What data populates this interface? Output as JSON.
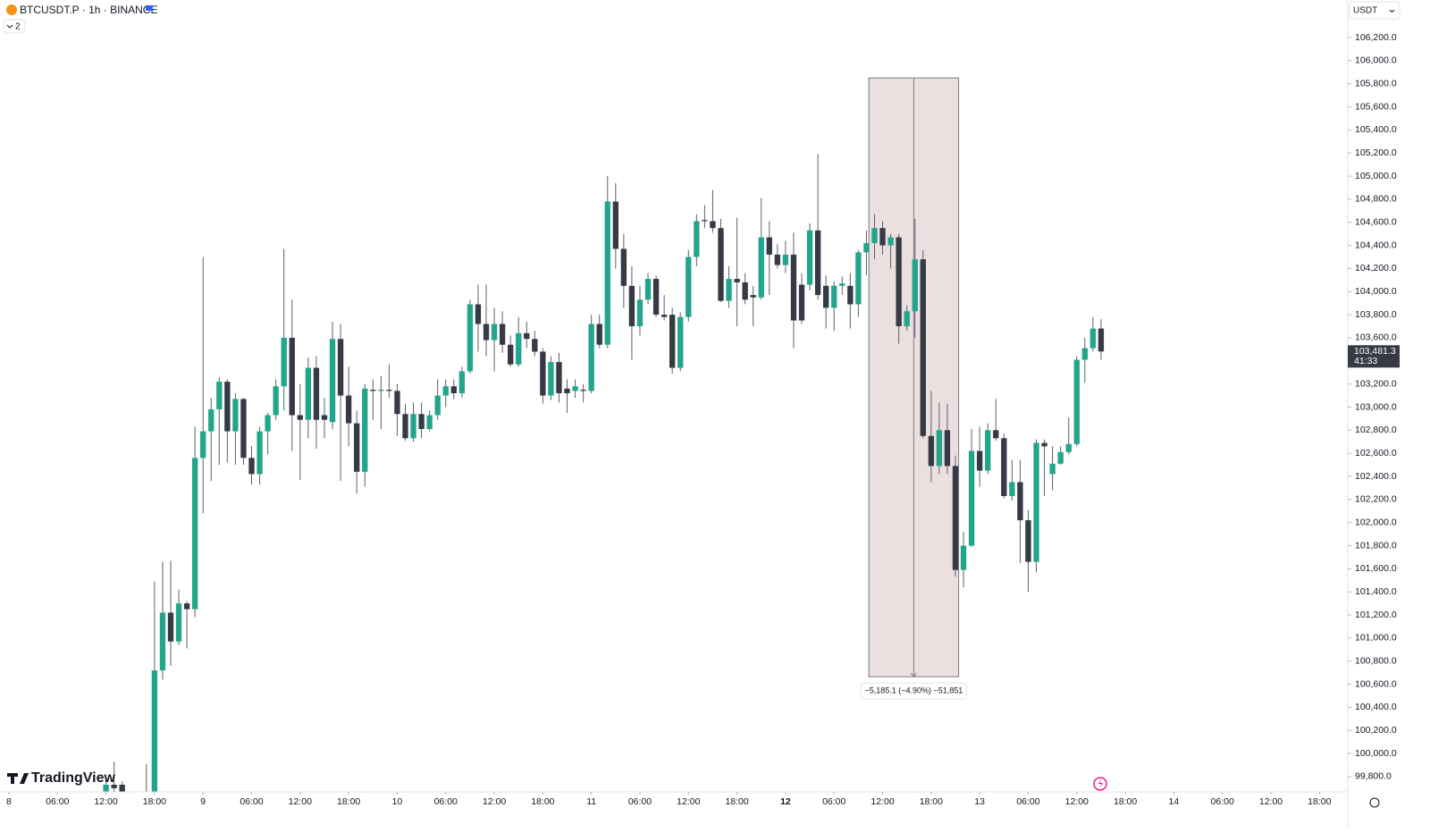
{
  "chart_data": {
    "type": "candlestick",
    "title": "BTCUSDT.P · 1h · BINANCE",
    "indicator_count": "2",
    "currency": "USDT",
    "brand": "TradingView",
    "up_color": "#22a58c",
    "down_color": "#363a45",
    "wick_color": "#5d606b",
    "xlim": [
      -1.1,
      165.5
    ],
    "ylim": [
      99668,
      106525
    ],
    "x": [
      12,
      13,
      14,
      17,
      18,
      19,
      20,
      21,
      22,
      23,
      24,
      25,
      26,
      27,
      28,
      29,
      30,
      31,
      32,
      33,
      34,
      35,
      36,
      37,
      38,
      39,
      40,
      41,
      42,
      43,
      44,
      45,
      46,
      47,
      48,
      49,
      50,
      51,
      52,
      53,
      54,
      55,
      56,
      57,
      58,
      59,
      60,
      61,
      62,
      63,
      64,
      65,
      66,
      67,
      68,
      69,
      70,
      71,
      72,
      73,
      74,
      75,
      76,
      77,
      78,
      79,
      80,
      81,
      82,
      83,
      84,
      85,
      86,
      87,
      88,
      89,
      90,
      91,
      92,
      93,
      94,
      95,
      96,
      97,
      98,
      99,
      100,
      101,
      102,
      103,
      104,
      105,
      106,
      107,
      108,
      109,
      110,
      111,
      112,
      113,
      114,
      115,
      116,
      117,
      118,
      119,
      120,
      121,
      122,
      123,
      124,
      125,
      126,
      127,
      128,
      129,
      130,
      131,
      132,
      133,
      134,
      135
    ],
    "open": [
      99600,
      99730,
      99730,
      99500,
      99650,
      100720,
      101220,
      100970,
      101300,
      101250,
      102560,
      102790,
      102980,
      103220,
      102790,
      103070,
      102560,
      102420,
      102790,
      102930,
      103180,
      103600,
      102930,
      102890,
      103340,
      102930,
      102870,
      103590,
      103100,
      102860,
      102440,
      103150,
      103140,
      103150,
      103140,
      102940,
      102730,
      102940,
      102810,
      102930,
      103100,
      103180,
      103120,
      103310,
      103890,
      103720,
      103580,
      103720,
      103540,
      103370,
      103640,
      103590,
      103480,
      103100,
      103390,
      103160,
      103140,
      103150,
      103140,
      103720,
      103540,
      104780,
      104370,
      104050,
      103700,
      103930,
      104110,
      103800,
      103800,
      103340,
      103780,
      104300,
      104620,
      104610,
      104550,
      103920,
      104110,
      104080,
      103970,
      103950,
      104470,
      104320,
      104230,
      104320,
      104060,
      104060,
      104530,
      104050,
      103860,
      104050,
      104050,
      103890,
      104340,
      104420,
      104550,
      104400,
      104470,
      103700,
      103830,
      104280,
      102750,
      102490,
      102800,
      102490,
      101590,
      101800,
      102620,
      102450,
      102800,
      102730,
      102230,
      102350,
      102020,
      101660,
      102690,
      102420,
      102510,
      102610,
      102680,
      103410,
      103510,
      103680
    ],
    "high": [
      99780,
      99930,
      99760,
      99910,
      101490,
      101660,
      101670,
      101420,
      101320,
      102830,
      104300,
      103080,
      103260,
      103240,
      103120,
      103080,
      102660,
      102830,
      102950,
      103240,
      104370,
      103930,
      103200,
      103430,
      103440,
      103080,
      103740,
      103720,
      103350,
      102970,
      103200,
      103240,
      103270,
      103370,
      103200,
      103030,
      103040,
      103040,
      102970,
      103240,
      103240,
      103240,
      103350,
      103930,
      104060,
      104060,
      103860,
      103830,
      103620,
      103780,
      103740,
      103660,
      103510,
      103440,
      103470,
      103240,
      103240,
      103200,
      103800,
      103800,
      105000,
      104940,
      104500,
      104220,
      104050,
      104160,
      104140,
      103970,
      103860,
      103820,
      104360,
      104670,
      104750,
      104880,
      104630,
      104220,
      104640,
      104160,
      104050,
      104810,
      104610,
      104410,
      104440,
      104510,
      104160,
      104590,
      105190,
      104140,
      104090,
      104130,
      104160,
      104360,
      104530,
      104670,
      104610,
      104500,
      104500,
      103880,
      104630,
      104360,
      103140,
      103040,
      103030,
      102580,
      101920,
      102810,
      102830,
      102860,
      103070,
      102770,
      102540,
      102540,
      102110,
      102720,
      102720,
      102660,
      102660,
      102910,
      103440,
      103600,
      103780,
      103760
    ],
    "low": [
      99550,
      99620,
      99600,
      99400,
      99600,
      100640,
      100760,
      100940,
      100910,
      101180,
      102080,
      102360,
      102500,
      102520,
      102500,
      102500,
      102330,
      102330,
      102590,
      102890,
      102970,
      102620,
      102370,
      102730,
      102640,
      102730,
      102810,
      102360,
      102660,
      102250,
      102310,
      102890,
      102810,
      103080,
      102750,
      102710,
      102700,
      102730,
      102790,
      102890,
      103000,
      103070,
      103080,
      103290,
      103480,
      103440,
      103310,
      103470,
      103350,
      103350,
      103510,
      103440,
      103030,
      103060,
      103040,
      102950,
      103080,
      103040,
      103120,
      103510,
      103510,
      104200,
      103860,
      103410,
      103620,
      103890,
      103780,
      103750,
      103290,
      103310,
      103740,
      104220,
      104550,
      104510,
      103910,
      103860,
      103700,
      103890,
      103700,
      103930,
      103970,
      104200,
      104160,
      103510,
      103720,
      104010,
      103930,
      103680,
      103660,
      103970,
      103680,
      103780,
      104140,
      104280,
      104320,
      104200,
      103550,
      103660,
      103600,
      102730,
      102350,
      102420,
      102420,
      101530,
      101440,
      101790,
      102310,
      102420,
      102710,
      102210,
      102190,
      101650,
      101400,
      101570,
      102230,
      102280,
      102500,
      102590,
      102660,
      103210,
      103480,
      103410
    ],
    "close": [
      99730,
      99700,
      99660,
      99600,
      100720,
      101220,
      100970,
      101300,
      101250,
      102560,
      102790,
      102980,
      103220,
      102790,
      103070,
      102560,
      102420,
      102790,
      102930,
      103180,
      103600,
      102930,
      102890,
      103340,
      102890,
      102890,
      103590,
      103100,
      102860,
      102440,
      103160,
      103140,
      103150,
      103140,
      102940,
      102730,
      102940,
      102810,
      102930,
      103100,
      103180,
      103120,
      103310,
      103890,
      103720,
      103580,
      103720,
      103540,
      103370,
      103640,
      103590,
      103480,
      103100,
      103390,
      103120,
      103120,
      103180,
      103140,
      103720,
      103540,
      104780,
      104370,
      104050,
      103700,
      103930,
      104110,
      103800,
      103780,
      103340,
      103780,
      104300,
      104610,
      104610,
      104550,
      103920,
      104110,
      104080,
      103930,
      103950,
      104470,
      104320,
      104230,
      104320,
      103750,
      103750,
      104530,
      103970,
      103860,
      104050,
      104070,
      103890,
      104340,
      104420,
      104550,
      104400,
      104470,
      103700,
      103830,
      104280,
      102750,
      102490,
      102800,
      102490,
      101590,
      101800,
      102620,
      102450,
      102800,
      102730,
      102230,
      102350,
      102020,
      101660,
      102690,
      102660,
      102510,
      102610,
      102680,
      103410,
      103510,
      103680,
      103481.3
    ],
    "last_price": {
      "value": 103481.3,
      "label": "103,481.3"
    },
    "countdown": "41:33",
    "measure": {
      "x": [
        106.3,
        117.4
      ],
      "y": [
        105850,
        100664.9
      ],
      "label": "−5,185.1 (−4.90%) −51,851"
    },
    "xticks": [
      {
        "value": 0,
        "label": "8"
      },
      {
        "value": 6,
        "label": "06:00"
      },
      {
        "value": 12,
        "label": "12:00"
      },
      {
        "value": 18,
        "label": "18:00"
      },
      {
        "value": 24,
        "label": "9"
      },
      {
        "value": 30,
        "label": "06:00"
      },
      {
        "value": 36,
        "label": "12:00"
      },
      {
        "value": 42,
        "label": "18:00"
      },
      {
        "value": 48,
        "label": "10"
      },
      {
        "value": 54,
        "label": "06:00"
      },
      {
        "value": 60,
        "label": "12:00"
      },
      {
        "value": 66,
        "label": "18:00"
      },
      {
        "value": 72,
        "label": "11"
      },
      {
        "value": 78,
        "label": "06:00"
      },
      {
        "value": 84,
        "label": "12:00"
      },
      {
        "value": 90,
        "label": "18:00"
      },
      {
        "value": 96,
        "label": "12"
      },
      {
        "value": 102,
        "label": "06:00"
      },
      {
        "value": 108,
        "label": "12:00"
      },
      {
        "value": 114,
        "label": "18:00"
      },
      {
        "value": 120,
        "label": "13"
      },
      {
        "value": 126,
        "label": "06:00"
      },
      {
        "value": 132,
        "label": "12:00"
      },
      {
        "value": 138,
        "label": "18:00"
      },
      {
        "value": 144,
        "label": "14"
      },
      {
        "value": 150,
        "label": "06:00"
      },
      {
        "value": 156,
        "label": "12:00"
      },
      {
        "value": 162,
        "label": "18:00"
      }
    ],
    "yticks": [
      {
        "value": 99800,
        "label": "99,800.0"
      },
      {
        "value": 100000,
        "label": "100,000.0"
      },
      {
        "value": 100200,
        "label": "100,200.0"
      },
      {
        "value": 100400,
        "label": "100,400.0"
      },
      {
        "value": 100600,
        "label": "100,600.0"
      },
      {
        "value": 100800,
        "label": "100,800.0"
      },
      {
        "value": 101000,
        "label": "101,000.0"
      },
      {
        "value": 101200,
        "label": "101,200.0"
      },
      {
        "value": 101400,
        "label": "101,400.0"
      },
      {
        "value": 101600,
        "label": "101,600.0"
      },
      {
        "value": 101800,
        "label": "101,800.0"
      },
      {
        "value": 102000,
        "label": "102,000.0"
      },
      {
        "value": 102200,
        "label": "102,200.0"
      },
      {
        "value": 102400,
        "label": "102,400.0"
      },
      {
        "value": 102600,
        "label": "102,600.0"
      },
      {
        "value": 102800,
        "label": "102,800.0"
      },
      {
        "value": 103000,
        "label": "103,000.0"
      },
      {
        "value": 103200,
        "label": "103,200.0"
      },
      {
        "value": 103400,
        "label": "103,400.0"
      },
      {
        "value": 103600,
        "label": "103,600.0"
      },
      {
        "value": 103800,
        "label": "103,800.0"
      },
      {
        "value": 104000,
        "label": "104,000.0"
      },
      {
        "value": 104200,
        "label": "104,200.0"
      },
      {
        "value": 104400,
        "label": "104,400.0"
      },
      {
        "value": 104600,
        "label": "104,600.0"
      },
      {
        "value": 104800,
        "label": "104,800.0"
      },
      {
        "value": 105000,
        "label": "105,000.0"
      },
      {
        "value": 105200,
        "label": "105,200.0"
      },
      {
        "value": 105400,
        "label": "105,400.0"
      },
      {
        "value": 105600,
        "label": "105,600.0"
      },
      {
        "value": 105800,
        "label": "105,800.0"
      },
      {
        "value": 106000,
        "label": "106,000.0"
      },
      {
        "value": 106200,
        "label": "106,200.0"
      }
    ]
  }
}
